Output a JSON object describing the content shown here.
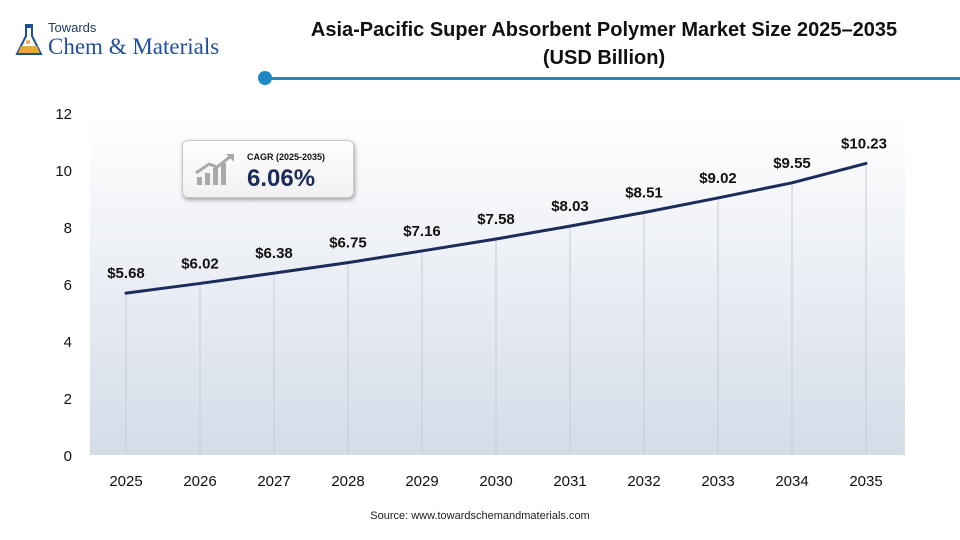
{
  "logo": {
    "small_text": "Towards",
    "main_text": "Chem & Materials"
  },
  "title": {
    "line1": "Asia-Pacific Super Absorbent Polymer Market Size 2025–2035",
    "line2": "(USD Billion)"
  },
  "cagr": {
    "label": "CAGR (2025-2035)",
    "value": "6.06%"
  },
  "source": "Source: www.towardschemandmaterials.com",
  "colors": {
    "accent": "#1e88c7",
    "line": "#1b2b5a",
    "plot_bg_top": "#ffffff",
    "plot_bg_bottom": "#d4dce8"
  },
  "chart_data": {
    "type": "line",
    "title": "Asia-Pacific Super Absorbent Polymer Market Size 2025–2035 (USD Billion)",
    "categories": [
      "2025",
      "2026",
      "2027",
      "2028",
      "2029",
      "2030",
      "2031",
      "2032",
      "2033",
      "2034",
      "2035"
    ],
    "values": [
      5.68,
      6.02,
      6.38,
      6.75,
      7.16,
      7.58,
      8.03,
      8.51,
      9.02,
      9.55,
      10.23
    ],
    "data_labels": [
      "$5.68",
      "$6.02",
      "$6.38",
      "$6.75",
      "$7.16",
      "$7.58",
      "$8.03",
      "$8.51",
      "$9.02",
      "$9.55",
      "$10.23"
    ],
    "ylim": [
      0,
      12
    ],
    "yticks": [
      "0",
      "2",
      "4",
      "6",
      "8",
      "10",
      "12"
    ],
    "xlabel": "",
    "ylabel": "",
    "grid": "vertical"
  }
}
